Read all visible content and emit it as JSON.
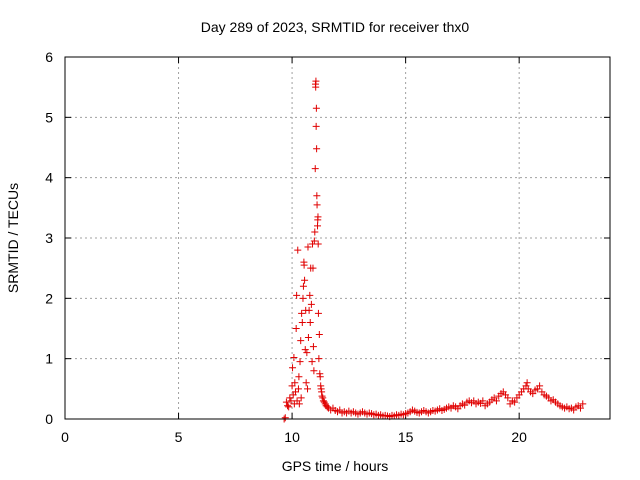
{
  "chart_data": {
    "type": "scatter",
    "title": "Day 289 of 2023, SRMTID for receiver thx0",
    "xlabel": "GPS time / hours",
    "ylabel": "SRMTID / TECUs",
    "xlim": [
      0,
      24
    ],
    "ylim": [
      0,
      6
    ],
    "x_ticks": [
      0,
      5,
      10,
      15,
      20
    ],
    "y_ticks": [
      0,
      1,
      2,
      3,
      4,
      5,
      6
    ],
    "grid": true,
    "marker": "plus",
    "color": "#e00000",
    "series": [
      {
        "name": "thx0",
        "points": [
          [
            9.65,
            0.0
          ],
          [
            9.7,
            0.02
          ],
          [
            9.75,
            0.28
          ],
          [
            9.8,
            0.22
          ],
          [
            9.85,
            0.2
          ],
          [
            9.9,
            0.35
          ],
          [
            9.95,
            0.3
          ],
          [
            10.0,
            0.55
          ],
          [
            10.02,
            0.85
          ],
          [
            10.05,
            0.4
          ],
          [
            10.08,
            1.02
          ],
          [
            10.1,
            0.25
          ],
          [
            10.12,
            0.6
          ],
          [
            10.15,
            0.45
          ],
          [
            10.18,
            1.5
          ],
          [
            10.2,
            2.05
          ],
          [
            10.22,
            0.3
          ],
          [
            10.25,
            2.8
          ],
          [
            10.28,
            0.5
          ],
          [
            10.3,
            0.7
          ],
          [
            10.32,
            0.25
          ],
          [
            10.35,
            0.95
          ],
          [
            10.38,
            1.3
          ],
          [
            10.4,
            0.35
          ],
          [
            10.42,
            1.75
          ],
          [
            10.45,
            1.6
          ],
          [
            10.48,
            2.0
          ],
          [
            10.5,
            2.2
          ],
          [
            10.52,
            2.6
          ],
          [
            10.53,
            2.55
          ],
          [
            10.55,
            2.3
          ],
          [
            10.58,
            1.15
          ],
          [
            10.6,
            1.8
          ],
          [
            10.62,
            0.6
          ],
          [
            10.65,
            1.1
          ],
          [
            10.68,
            0.5
          ],
          [
            10.7,
            2.85
          ],
          [
            10.72,
            1.35
          ],
          [
            10.75,
            1.8
          ],
          [
            10.78,
            2.05
          ],
          [
            10.8,
            1.6
          ],
          [
            10.82,
            2.5
          ],
          [
            10.85,
            1.9
          ],
          [
            10.88,
            0.95
          ],
          [
            10.9,
            2.9
          ],
          [
            10.92,
            2.5
          ],
          [
            10.94,
            1.2
          ],
          [
            10.96,
            0.8
          ],
          [
            10.98,
            2.95
          ],
          [
            11.0,
            3.1
          ],
          [
            11.02,
            4.15
          ],
          [
            11.03,
            5.55
          ],
          [
            11.04,
            5.5
          ],
          [
            11.05,
            5.6
          ],
          [
            11.06,
            4.85
          ],
          [
            11.07,
            5.15
          ],
          [
            11.08,
            4.48
          ],
          [
            11.09,
            3.7
          ],
          [
            11.1,
            3.55
          ],
          [
            11.12,
            3.2
          ],
          [
            11.13,
            3.3
          ],
          [
            11.14,
            3.35
          ],
          [
            11.15,
            2.9
          ],
          [
            11.16,
            1.75
          ],
          [
            11.18,
            1.0
          ],
          [
            11.2,
            1.4
          ],
          [
            11.22,
            0.75
          ],
          [
            11.24,
            0.7
          ],
          [
            11.26,
            0.55
          ],
          [
            11.28,
            0.5
          ],
          [
            11.3,
            0.45
          ],
          [
            11.32,
            0.38
          ],
          [
            11.35,
            0.35
          ],
          [
            11.38,
            0.3
          ],
          [
            11.42,
            0.28
          ],
          [
            11.46,
            0.25
          ],
          [
            11.5,
            0.22
          ],
          [
            11.55,
            0.2
          ],
          [
            11.6,
            0.18
          ],
          [
            11.7,
            0.15
          ],
          [
            11.8,
            0.18
          ],
          [
            11.9,
            0.14
          ],
          [
            12.0,
            0.12
          ],
          [
            12.1,
            0.15
          ],
          [
            12.2,
            0.1
          ],
          [
            12.3,
            0.12
          ],
          [
            12.4,
            0.1
          ],
          [
            12.5,
            0.13
          ],
          [
            12.6,
            0.1
          ],
          [
            12.7,
            0.12
          ],
          [
            12.8,
            0.1
          ],
          [
            12.9,
            0.08
          ],
          [
            13.0,
            0.1
          ],
          [
            13.1,
            0.12
          ],
          [
            13.2,
            0.1
          ],
          [
            13.3,
            0.08
          ],
          [
            13.4,
            0.1
          ],
          [
            13.5,
            0.09
          ],
          [
            13.6,
            0.07
          ],
          [
            13.7,
            0.08
          ],
          [
            13.8,
            0.06
          ],
          [
            13.9,
            0.07
          ],
          [
            14.0,
            0.05
          ],
          [
            14.1,
            0.06
          ],
          [
            14.2,
            0.05
          ],
          [
            14.3,
            0.04
          ],
          [
            14.4,
            0.06
          ],
          [
            14.5,
            0.05
          ],
          [
            14.6,
            0.07
          ],
          [
            14.7,
            0.06
          ],
          [
            14.8,
            0.08
          ],
          [
            14.9,
            0.07
          ],
          [
            15.0,
            0.09
          ],
          [
            15.1,
            0.1
          ],
          [
            15.2,
            0.12
          ],
          [
            15.3,
            0.15
          ],
          [
            15.4,
            0.13
          ],
          [
            15.5,
            0.11
          ],
          [
            15.6,
            0.1
          ],
          [
            15.7,
            0.12
          ],
          [
            15.8,
            0.14
          ],
          [
            15.9,
            0.12
          ],
          [
            16.0,
            0.1
          ],
          [
            16.1,
            0.12
          ],
          [
            16.2,
            0.14
          ],
          [
            16.3,
            0.13
          ],
          [
            16.4,
            0.15
          ],
          [
            16.5,
            0.17
          ],
          [
            16.6,
            0.14
          ],
          [
            16.7,
            0.16
          ],
          [
            16.8,
            0.18
          ],
          [
            16.9,
            0.2
          ],
          [
            17.0,
            0.18
          ],
          [
            17.1,
            0.22
          ],
          [
            17.2,
            0.2
          ],
          [
            17.3,
            0.17
          ],
          [
            17.4,
            0.22
          ],
          [
            17.5,
            0.25
          ],
          [
            17.6,
            0.23
          ],
          [
            17.7,
            0.28
          ],
          [
            17.8,
            0.3
          ],
          [
            17.9,
            0.27
          ],
          [
            18.0,
            0.3
          ],
          [
            18.1,
            0.25
          ],
          [
            18.2,
            0.28
          ],
          [
            18.3,
            0.26
          ],
          [
            18.4,
            0.3
          ],
          [
            18.5,
            0.22
          ],
          [
            18.6,
            0.25
          ],
          [
            18.7,
            0.28
          ],
          [
            18.8,
            0.32
          ],
          [
            18.9,
            0.35
          ],
          [
            19.0,
            0.3
          ],
          [
            19.1,
            0.38
          ],
          [
            19.2,
            0.42
          ],
          [
            19.3,
            0.45
          ],
          [
            19.4,
            0.4
          ],
          [
            19.5,
            0.35
          ],
          [
            19.6,
            0.25
          ],
          [
            19.7,
            0.3
          ],
          [
            19.8,
            0.28
          ],
          [
            19.9,
            0.35
          ],
          [
            20.0,
            0.4
          ],
          [
            20.1,
            0.45
          ],
          [
            20.2,
            0.5
          ],
          [
            20.3,
            0.55
          ],
          [
            20.35,
            0.6
          ],
          [
            20.4,
            0.5
          ],
          [
            20.5,
            0.45
          ],
          [
            20.6,
            0.42
          ],
          [
            20.7,
            0.48
          ],
          [
            20.8,
            0.5
          ],
          [
            20.9,
            0.55
          ],
          [
            21.0,
            0.45
          ],
          [
            21.1,
            0.4
          ],
          [
            21.2,
            0.38
          ],
          [
            21.3,
            0.35
          ],
          [
            21.4,
            0.3
          ],
          [
            21.5,
            0.32
          ],
          [
            21.6,
            0.28
          ],
          [
            21.7,
            0.25
          ],
          [
            21.8,
            0.22
          ],
          [
            21.9,
            0.2
          ],
          [
            22.0,
            0.18
          ],
          [
            22.1,
            0.2
          ],
          [
            22.2,
            0.17
          ],
          [
            22.3,
            0.18
          ],
          [
            22.4,
            0.15
          ],
          [
            22.5,
            0.2
          ],
          [
            22.6,
            0.22
          ],
          [
            22.7,
            0.18
          ],
          [
            22.8,
            0.25
          ]
        ]
      }
    ]
  }
}
